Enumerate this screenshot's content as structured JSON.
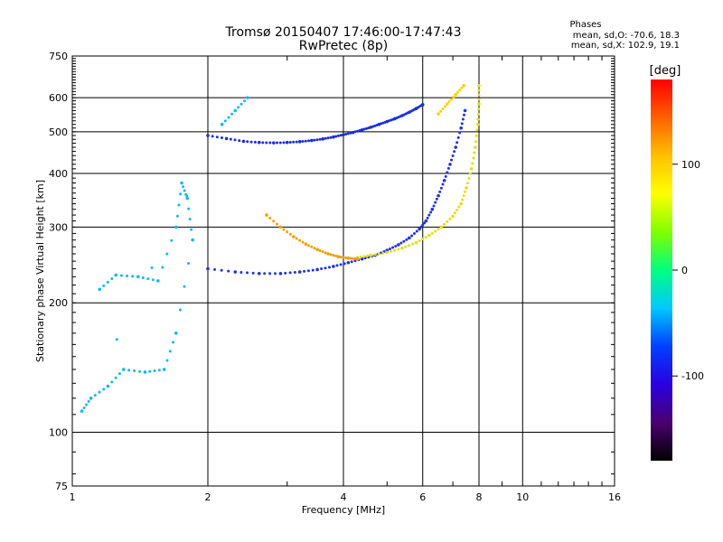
{
  "chart_data": {
    "type": "scatter",
    "title": "Tromsø 20150407 17:46:00-17:47:43",
    "subtitle": "RwPretec (8p)",
    "phases": {
      "heading": "Phases",
      "line_o": "mean, sd,O: -70.6, 18.3",
      "line_x": "mean, sd,X: 102.9, 19.1"
    },
    "xlabel": "Frequency [MHz]",
    "ylabel": "Stationary phase Virtual Height [km]",
    "x_scale": "log",
    "y_scale": "log",
    "xlim": [
      1,
      16
    ],
    "ylim": [
      75,
      750
    ],
    "x_ticks": [
      1,
      2,
      4,
      6,
      8,
      10,
      16
    ],
    "y_ticks": [
      75,
      100,
      200,
      300,
      400,
      500,
      600,
      750
    ],
    "grid": true,
    "colorbar": {
      "label": "[deg]",
      "range": [
        -180,
        180
      ],
      "ticks": [
        100,
        0,
        -100
      ]
    },
    "series": [
      {
        "phase_deg": -70,
        "color": "#1a2fd8",
        "points": [
          [
            2.0,
            490
          ],
          [
            2.2,
            482
          ],
          [
            2.4,
            475
          ],
          [
            2.6,
            472
          ],
          [
            2.8,
            471
          ],
          [
            3.0,
            472
          ],
          [
            3.2,
            474
          ],
          [
            3.4,
            477
          ],
          [
            3.6,
            481
          ],
          [
            3.8,
            486
          ],
          [
            4.0,
            492
          ],
          [
            4.2,
            498
          ],
          [
            4.4,
            505
          ],
          [
            4.6,
            512
          ],
          [
            4.8,
            520
          ],
          [
            5.0,
            528
          ],
          [
            5.2,
            536
          ],
          [
            5.4,
            545
          ],
          [
            5.6,
            555
          ],
          [
            5.8,
            566
          ],
          [
            6.0,
            578
          ]
        ]
      },
      {
        "phase_deg": -110,
        "color": "#2233e0",
        "points": [
          [
            2.0,
            240
          ],
          [
            2.3,
            236
          ],
          [
            2.6,
            234
          ],
          [
            2.9,
            234
          ],
          [
            3.2,
            236
          ],
          [
            3.5,
            239
          ],
          [
            3.8,
            243
          ],
          [
            4.1,
            248
          ],
          [
            4.4,
            253
          ],
          [
            4.7,
            258
          ],
          [
            5.0,
            265
          ],
          [
            5.3,
            273
          ],
          [
            5.6,
            283
          ],
          [
            5.9,
            297
          ],
          [
            6.1,
            310
          ],
          [
            6.3,
            330
          ],
          [
            6.5,
            355
          ],
          [
            6.7,
            385
          ],
          [
            6.9,
            420
          ],
          [
            7.1,
            460
          ],
          [
            7.3,
            510
          ],
          [
            7.45,
            560
          ]
        ]
      },
      {
        "phase_deg": 100,
        "color": "#e0e010",
        "points": [
          [
            4.3,
            255
          ],
          [
            4.6,
            258
          ],
          [
            5.0,
            262
          ],
          [
            5.4,
            268
          ],
          [
            5.8,
            276
          ],
          [
            6.2,
            287
          ],
          [
            6.6,
            300
          ],
          [
            7.0,
            318
          ],
          [
            7.3,
            340
          ],
          [
            7.5,
            370
          ],
          [
            7.7,
            410
          ],
          [
            7.85,
            460
          ],
          [
            7.95,
            520
          ],
          [
            8.0,
            580
          ],
          [
            8.0,
            640
          ]
        ]
      },
      {
        "phase_deg": 140,
        "color": "#f0a000",
        "points": [
          [
            2.7,
            320
          ],
          [
            2.9,
            300
          ],
          [
            3.1,
            285
          ],
          [
            3.3,
            274
          ],
          [
            3.5,
            266
          ],
          [
            3.7,
            260
          ],
          [
            3.9,
            256
          ],
          [
            4.1,
            254
          ],
          [
            4.3,
            253
          ]
        ]
      },
      {
        "phase_deg": 120,
        "color": "#ffd000",
        "points": [
          [
            6.5,
            550
          ],
          [
            6.8,
            580
          ],
          [
            7.1,
            610
          ],
          [
            7.4,
            640
          ]
        ]
      },
      {
        "phase_deg": -40,
        "color": "#16b8e8",
        "points": [
          [
            1.15,
            215
          ],
          [
            1.25,
            232
          ],
          [
            1.4,
            230
          ],
          [
            1.55,
            225
          ],
          [
            1.7,
            300
          ],
          [
            1.75,
            380
          ],
          [
            1.8,
            350
          ],
          [
            1.85,
            280
          ],
          [
            1.7,
            170
          ],
          [
            1.6,
            140
          ],
          [
            1.45,
            138
          ],
          [
            1.3,
            140
          ],
          [
            1.2,
            128
          ],
          [
            1.1,
            120
          ],
          [
            1.05,
            112
          ],
          [
            2.15,
            520
          ],
          [
            2.3,
            560
          ],
          [
            2.45,
            600
          ]
        ]
      }
    ]
  }
}
